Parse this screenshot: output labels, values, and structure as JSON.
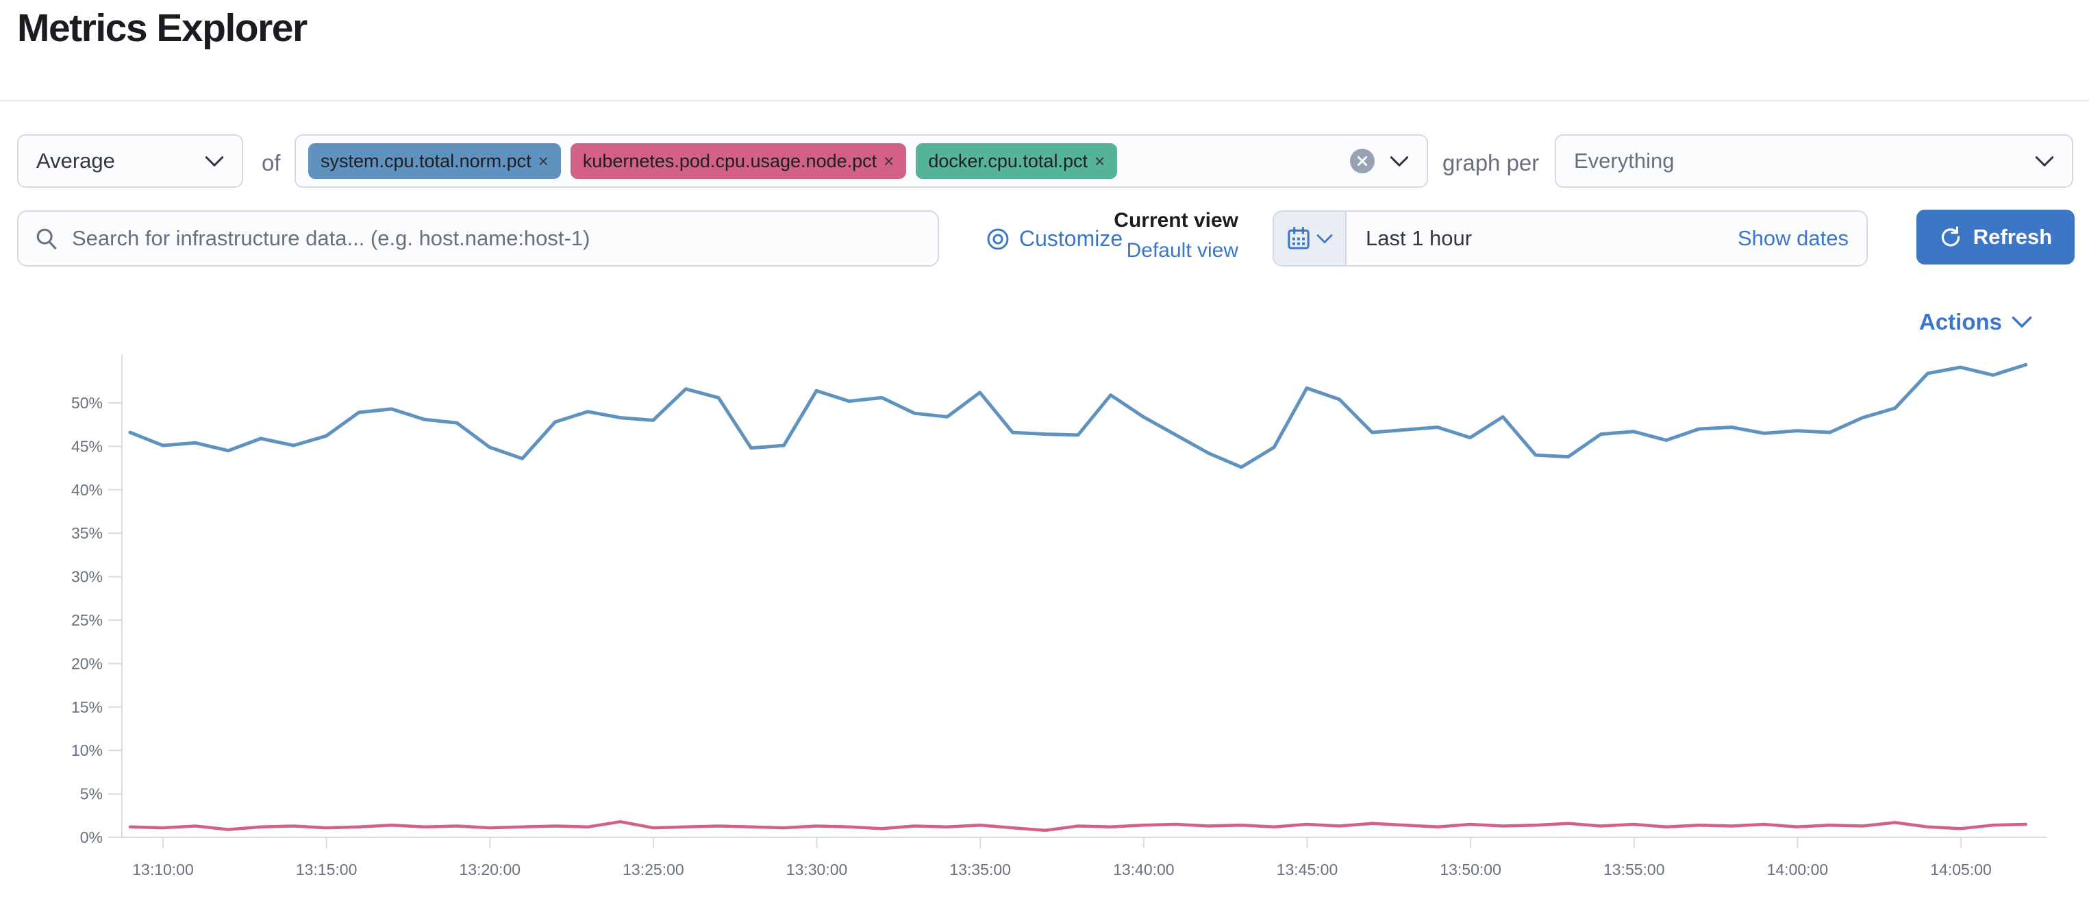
{
  "page": {
    "title": "Metrics Explorer"
  },
  "toolbar": {
    "aggregation": {
      "value": "Average"
    },
    "of_label": "of",
    "metrics": [
      {
        "label": "system.cpu.total.norm.pct",
        "color": "#6092C0"
      },
      {
        "label": "kubernetes.pod.cpu.usage.node.pct",
        "color": "#D36086"
      },
      {
        "label": "docker.cpu.total.pct",
        "color": "#54B399"
      }
    ],
    "remove_icon": "×",
    "graph_per_label": "graph per",
    "group_by": {
      "placeholder": "Everything"
    }
  },
  "search": {
    "placeholder": "Search for infrastructure data... (e.g. host.name:host-1)"
  },
  "view_controls": {
    "customize_label": "Customize",
    "current_view_label": "Current view",
    "default_view_label": "Default view"
  },
  "time_picker": {
    "value": "Last 1 hour",
    "show_dates_label": "Show dates",
    "refresh_label": "Refresh"
  },
  "actions": {
    "label": "Actions"
  },
  "chart_data": {
    "type": "line",
    "title": "",
    "xlabel": "",
    "ylabel": "",
    "ylim": [
      0,
      55.5
    ],
    "grid": false,
    "legend": "none",
    "y_ticks": [
      "0%",
      "5%",
      "10%",
      "15%",
      "20%",
      "25%",
      "30%",
      "35%",
      "40%",
      "45%",
      "50%"
    ],
    "x_tick_labels": [
      "13:10:00",
      "13:15:00",
      "13:20:00",
      "13:25:00",
      "13:30:00",
      "13:35:00",
      "13:40:00",
      "13:45:00",
      "13:50:00",
      "13:55:00",
      "14:00:00",
      "14:05:00"
    ],
    "x": [
      "13:09:00",
      "13:10:00",
      "13:11:00",
      "13:12:00",
      "13:13:00",
      "13:14:00",
      "13:15:00",
      "13:16:00",
      "13:17:00",
      "13:18:00",
      "13:19:00",
      "13:20:00",
      "13:21:00",
      "13:22:00",
      "13:23:00",
      "13:24:00",
      "13:25:00",
      "13:26:00",
      "13:27:00",
      "13:28:00",
      "13:29:00",
      "13:30:00",
      "13:31:00",
      "13:32:00",
      "13:33:00",
      "13:34:00",
      "13:35:00",
      "13:36:00",
      "13:37:00",
      "13:38:00",
      "13:39:00",
      "13:40:00",
      "13:41:00",
      "13:42:00",
      "13:43:00",
      "13:44:00",
      "13:45:00",
      "13:46:00",
      "13:47:00",
      "13:48:00",
      "13:49:00",
      "13:50:00",
      "13:51:00",
      "13:52:00",
      "13:53:00",
      "13:54:00",
      "13:55:00",
      "13:56:00",
      "13:57:00",
      "13:58:00",
      "13:59:00",
      "14:00:00",
      "14:01:00",
      "14:02:00",
      "14:03:00",
      "14:04:00",
      "14:05:00",
      "14:06:00",
      "14:07:00"
    ],
    "series": [
      {
        "name": "system.cpu.total.norm.pct (Average)",
        "color": "#6092C0",
        "unit": "%",
        "values": [
          46.6,
          45.1,
          45.4,
          44.5,
          45.9,
          45.1,
          46.2,
          48.9,
          49.3,
          48.1,
          47.7,
          44.9,
          43.6,
          47.8,
          49.0,
          48.3,
          48.0,
          51.6,
          50.6,
          44.8,
          45.1,
          51.4,
          50.2,
          50.6,
          48.8,
          48.4,
          51.2,
          46.6,
          46.4,
          46.3,
          50.9,
          48.4,
          46.3,
          44.2,
          42.6,
          44.9,
          51.7,
          50.4,
          46.6,
          46.9,
          47.2,
          46.0,
          48.4,
          44.0,
          43.8,
          46.4,
          46.7,
          45.7,
          47.0,
          47.2,
          46.5,
          46.8,
          46.6,
          48.3,
          49.4,
          53.4,
          54.1,
          53.2,
          54.4
        ]
      },
      {
        "name": "kubernetes.pod.cpu.usage.node.pct (Average)",
        "color": "#D36086",
        "unit": "%",
        "values": [
          1.2,
          1.1,
          1.3,
          0.9,
          1.2,
          1.3,
          1.1,
          1.2,
          1.4,
          1.2,
          1.3,
          1.1,
          1.2,
          1.3,
          1.2,
          1.8,
          1.1,
          1.2,
          1.3,
          1.2,
          1.1,
          1.3,
          1.2,
          1.0,
          1.3,
          1.2,
          1.4,
          1.1,
          0.8,
          1.3,
          1.2,
          1.4,
          1.5,
          1.3,
          1.4,
          1.2,
          1.5,
          1.3,
          1.6,
          1.4,
          1.2,
          1.5,
          1.3,
          1.4,
          1.6,
          1.3,
          1.5,
          1.2,
          1.4,
          1.3,
          1.5,
          1.2,
          1.4,
          1.3,
          1.7,
          1.2,
          1.0,
          1.4,
          1.5
        ]
      }
    ]
  }
}
